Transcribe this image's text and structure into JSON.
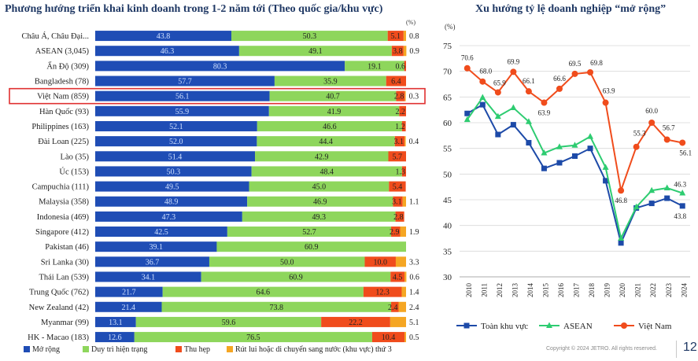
{
  "colors": {
    "mo_rong": "#1f4db5",
    "duy_tri": "#8ed65c",
    "thu_hep": "#f04c1c",
    "rut_lui": "#f5a623",
    "toan_khu_vuc": "#1d4aa8",
    "asean": "#2ecc71",
    "viet_nam": "#f04c1c",
    "highlight": "#e03030",
    "title": "#1f3864"
  },
  "page": {
    "copyright": "Copyright © 2024 JETRO. All rights reserved.",
    "page_number": "12"
  },
  "chart_data": [
    {
      "type": "bar",
      "title": "Phương hướng triển khai kinh doanh trong 1-2 năm tới (Theo quốc gia/khu vực)",
      "unit": "(%)",
      "stacked": true,
      "orientation": "horizontal",
      "highlight": "Việt Nam (859)",
      "categories": [
        "Châu Á, Châu Đại...",
        "ASEAN (3,045)",
        "Ấn Độ (309)",
        "Bangladesh (78)",
        "Việt Nam (859)",
        "Hàn Quốc (93)",
        "Philippines (163)",
        "Đài Loan (225)",
        "Lào (35)",
        "Úc (153)",
        "Campuchia (111)",
        "Malaysia (358)",
        "Indonesia (469)",
        "Singapore (412)",
        "Pakistan (46)",
        "Sri Lanka (30)",
        "Thái Lan (539)",
        "Trung Quốc (762)",
        "New Zealand (42)",
        "Myanmar (99)",
        "HK - Macao (183)"
      ],
      "series": [
        {
          "name": "Mở rộng",
          "values": [
            43.8,
            46.3,
            80.3,
            57.7,
            56.1,
            55.9,
            52.1,
            52.0,
            51.4,
            50.3,
            49.5,
            48.9,
            47.3,
            42.5,
            39.1,
            36.7,
            34.1,
            21.7,
            21.4,
            13.1,
            12.6
          ]
        },
        {
          "name": "Duy trì hiện trạng",
          "values": [
            50.3,
            49.1,
            19.1,
            35.9,
            40.7,
            41.9,
            46.6,
            44.4,
            42.9,
            48.4,
            45.0,
            46.9,
            49.3,
            52.7,
            60.9,
            50.0,
            60.9,
            64.6,
            73.8,
            59.6,
            76.5
          ]
        },
        {
          "name": "Thu hẹp",
          "values": [
            5.1,
            3.8,
            0.6,
            6.4,
            2.8,
            2.2,
            1.2,
            3.1,
            5.7,
            1.3,
            5.4,
            3.1,
            2.8,
            2.9,
            0.0,
            10.0,
            4.5,
            12.3,
            2.4,
            22.2,
            10.4
          ]
        },
        {
          "name": "Rút lui hoặc di chuyển sang nước (khu vực) thứ 3",
          "values": [
            0.8,
            0.9,
            0.0,
            0.0,
            0.3,
            0.0,
            0.0,
            0.4,
            0.0,
            0.0,
            0.0,
            1.1,
            0.0,
            1.9,
            0.0,
            3.3,
            0.6,
            1.4,
            2.4,
            5.1,
            0.5
          ]
        }
      ],
      "labels": [
        [
          "43.8",
          "50.3",
          "5.1",
          "0.8"
        ],
        [
          "46.3",
          "49.1",
          "3.8",
          "0.9"
        ],
        [
          "80.3",
          "19.1",
          "0.6",
          ""
        ],
        [
          "57.7",
          "35.9",
          "6.4",
          ""
        ],
        [
          "56.1",
          "40.7",
          "2.8",
          "0.3"
        ],
        [
          "55.9",
          "41.9",
          "2.2",
          ""
        ],
        [
          "52.1",
          "46.6",
          "1.2",
          ""
        ],
        [
          "52.0",
          "44.4",
          "3.1",
          "0.4"
        ],
        [
          "51.4",
          "42.9",
          "5.7",
          ""
        ],
        [
          "50.3",
          "48.4",
          "1.3",
          ""
        ],
        [
          "49.5",
          "45.0",
          "5.4",
          ""
        ],
        [
          "48.9",
          "46.9",
          "3.1",
          "1.1"
        ],
        [
          "47.3",
          "49.3",
          "2.8",
          ""
        ],
        [
          "42.5",
          "52.7",
          "2.9",
          "1.9"
        ],
        [
          "39.1",
          "60.9",
          "",
          ""
        ],
        [
          "36.7",
          "50.0",
          "10.0",
          "3.3"
        ],
        [
          "34.1",
          "60.9",
          "4.5",
          "0.6"
        ],
        [
          "21.7",
          "64.6",
          "12.3",
          "1.4"
        ],
        [
          "21.4",
          "73.8",
          "2.4",
          "2.4"
        ],
        [
          "13.1",
          "59.6",
          "22.2",
          "5.1"
        ],
        [
          "12.6",
          "76.5",
          "10.4",
          "0.5"
        ]
      ],
      "legend": [
        "Mở rộng",
        "Duy trì hiện trạng",
        "Thu hẹp",
        "Rút lui hoặc di chuyển sang nước (khu vực) thứ 3"
      ],
      "legend_position": "bottom",
      "xlim": [
        0,
        100
      ]
    },
    {
      "type": "line",
      "title": "Xu hướng tỷ lệ doanh nghiệp “mở rộng”",
      "ylabel": "(%)",
      "x": [
        "2010",
        "2011",
        "2012",
        "2013",
        "2014",
        "2015",
        "2016",
        "2017",
        "2018",
        "2019",
        "2020",
        "2021",
        "2022",
        "2023",
        "2024"
      ],
      "ylim": [
        30,
        75
      ],
      "yticks": [
        "30",
        "35",
        "40",
        "45",
        "50",
        "55",
        "60",
        "65",
        "70",
        "75"
      ],
      "grid": true,
      "legend_position": "bottom",
      "series": [
        {
          "name": "Toàn khu vực",
          "values": [
            61.8,
            63.5,
            57.7,
            59.6,
            56.1,
            51.1,
            52.2,
            53.5,
            55.0,
            48.7,
            36.6,
            43.4,
            44.3,
            45.3,
            43.8
          ],
          "labels": [
            "",
            "",
            "",
            "",
            "",
            "",
            "",
            "",
            "",
            "",
            "",
            "",
            "",
            "",
            "43.8"
          ]
        },
        {
          "name": "ASEAN",
          "values": [
            60.6,
            64.9,
            61.2,
            62.9,
            60.2,
            54.1,
            55.3,
            55.6,
            57.3,
            51.3,
            37.5,
            43.6,
            46.8,
            47.3,
            46.3
          ],
          "labels": [
            "",
            "",
            "",
            "",
            "",
            "",
            "",
            "",
            "",
            "",
            "",
            "",
            "",
            "",
            "46.3"
          ]
        },
        {
          "name": "Việt Nam",
          "values": [
            70.6,
            68.0,
            65.9,
            69.9,
            66.1,
            63.9,
            66.6,
            69.5,
            69.8,
            63.9,
            46.8,
            55.3,
            60.0,
            56.7,
            56.1
          ],
          "labels": [
            "70.6",
            "68.0",
            "65.9",
            "69.9",
            "66.1",
            "63.9",
            "66.6",
            "69.5",
            "69.8",
            "63.9",
            "46.8",
            "55.3",
            "60.0",
            "56.7",
            "56.1"
          ]
        }
      ]
    }
  ]
}
